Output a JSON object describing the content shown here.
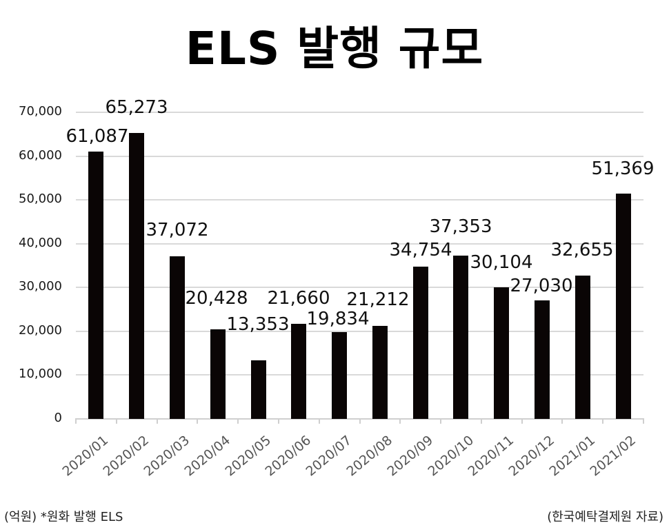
{
  "title": "ELS 발행 규모",
  "footer": {
    "unit_note": "(억원)  *원화 발행 ELS",
    "source": "(한국예탁결제원 자료)"
  },
  "yaxis": {
    "ticks": [
      "0",
      "10,000",
      "20,000",
      "30,000",
      "40,000",
      "50,000",
      "60,000",
      "70,000"
    ]
  },
  "chart_data": {
    "type": "bar",
    "title": "ELS 발행 규모",
    "xlabel": "",
    "ylabel": "(억원)",
    "ylim": [
      0,
      70000
    ],
    "grid": true,
    "legend": null,
    "categories": [
      "2020/01",
      "2020/02",
      "2020/03",
      "2020/04",
      "2020/05",
      "2020/06",
      "2020/07",
      "2020/08",
      "2020/09",
      "2020/10",
      "2020/11",
      "2020/12",
      "2021/01",
      "2021/02"
    ],
    "values": [
      61087,
      65273,
      37072,
      20428,
      13353,
      21660,
      19834,
      21212,
      34754,
      37353,
      30104,
      27030,
      32655,
      51369
    ],
    "value_labels": [
      "61,087",
      "65,273",
      "37,072",
      "20,428",
      "13,353",
      "21,660",
      "19,834",
      "21,212",
      "34,754",
      "37,353",
      "30,104",
      "27,030",
      "32,655",
      "51,369"
    ],
    "series": [
      {
        "name": "원화 발행 ELS",
        "color": "#0a0505"
      }
    ],
    "annotations": [
      "(억원)  *원화 발행 ELS",
      "(한국예탁결제원 자료)"
    ]
  }
}
